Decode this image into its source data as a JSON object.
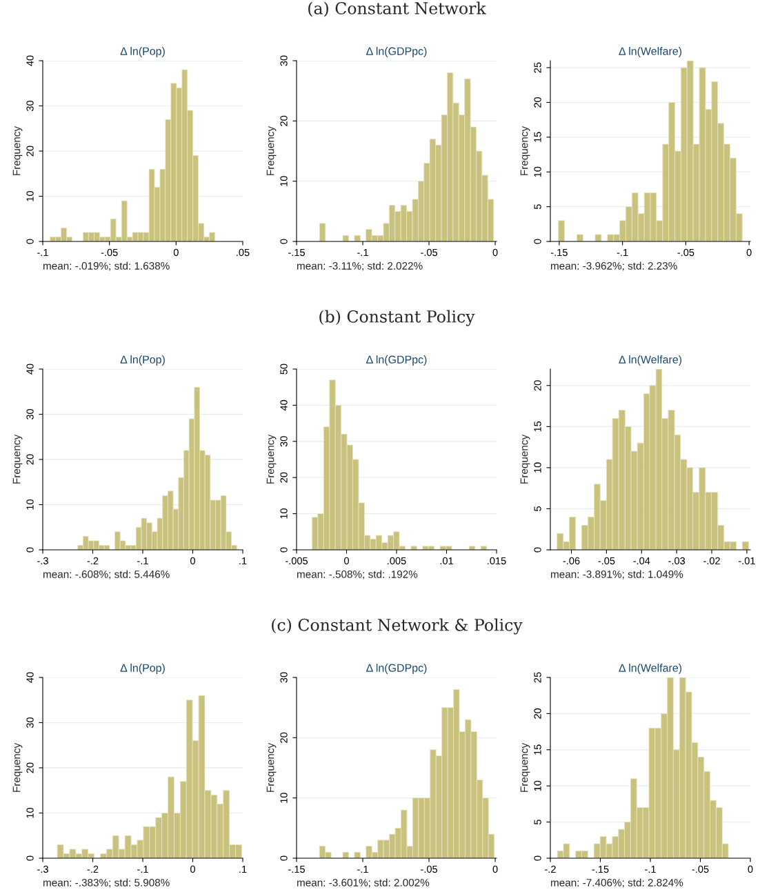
{
  "chart_data": [
    {
      "type": "histogram",
      "title": "Δ ln(Pop)",
      "ylabel": "Frequency",
      "xlabel": "mean: -.019%; std: 1.638%",
      "color": "#c9c27e",
      "grid": "y",
      "bins": [
        -0.0945,
        -0.0904,
        -0.0863,
        -0.0821,
        -0.078,
        -0.0739,
        -0.0698,
        -0.0657,
        -0.0615,
        -0.0574,
        -0.0533,
        -0.0492,
        -0.0451,
        -0.0409,
        -0.0368,
        -0.0327,
        -0.0286,
        -0.0245,
        -0.0203,
        -0.0162,
        -0.0121,
        -0.008,
        -0.0039,
        0.0003,
        0.0044,
        0.0085,
        0.0126,
        0.0167,
        0.0209,
        0.025,
        0.0291
      ],
      "values": [
        1,
        1,
        3,
        1,
        0,
        0,
        2,
        2,
        2,
        1,
        1,
        5,
        1,
        9,
        1,
        2,
        2,
        2,
        16,
        12,
        16,
        27,
        35,
        34,
        38,
        29,
        19,
        4,
        1,
        2
      ],
      "xlim": [
        -0.1,
        0.05
      ],
      "xticks": [
        {
          "value": -0.1,
          "label": "-.1"
        },
        {
          "value": -0.05,
          "label": "-.05"
        },
        0,
        {
          "value": 0.05,
          "label": ".05"
        }
      ],
      "ylim": [
        0,
        40
      ],
      "yticks": [
        0,
        10,
        20,
        30,
        40
      ]
    },
    {
      "type": "histogram",
      "subtitle": "(a) Constant Network",
      "title": "Δ ln(GDPpc)",
      "ylabel": "Frequency",
      "xlabel": "mean: -3.11%; std: 2.022%",
      "color": "#c9c27e",
      "grid": "y",
      "bins": [
        -0.1326,
        -0.1282,
        -0.1238,
        -0.1195,
        -0.1151,
        -0.1107,
        -0.1063,
        -0.1019,
        -0.0976,
        -0.0932,
        -0.0888,
        -0.0844,
        -0.08,
        -0.0757,
        -0.0713,
        -0.0669,
        -0.0625,
        -0.0581,
        -0.0538,
        -0.0494,
        -0.045,
        -0.0406,
        -0.0362,
        -0.0319,
        -0.0275,
        -0.0231,
        -0.0187,
        -0.0143,
        -0.01,
        -0.0056,
        -0.0012
      ],
      "values": [
        3,
        0,
        0,
        0,
        1,
        0,
        1,
        0,
        2,
        1,
        1,
        3,
        6,
        5,
        6,
        5,
        7,
        10,
        13,
        17,
        16,
        21,
        28,
        23,
        21,
        27,
        19,
        15,
        11,
        7
      ],
      "xlim": [
        -0.15,
        0.001
      ],
      "xticks": [
        {
          "value": -0.15,
          "label": "-.15"
        },
        {
          "value": -0.1,
          "label": "-.1"
        },
        {
          "value": -0.05,
          "label": "-.05"
        },
        0
      ],
      "ylim": [
        0,
        30
      ],
      "yticks": [
        0,
        10,
        20,
        30
      ]
    },
    {
      "type": "histogram",
      "title": "Δ ln(Welfare)",
      "ylabel": "Frequency",
      "xlabel": "mean: -3.962%; std: 2.23%",
      "color": "#c9c27e",
      "grid": "y",
      "bins": [
        -0.1506,
        -0.1458,
        -0.1409,
        -0.1361,
        -0.1312,
        -0.1264,
        -0.1216,
        -0.1167,
        -0.1119,
        -0.107,
        -0.1022,
        -0.0974,
        -0.0925,
        -0.0877,
        -0.0828,
        -0.078,
        -0.0732,
        -0.0683,
        -0.0635,
        -0.0586,
        -0.0538,
        -0.049,
        -0.0441,
        -0.0393,
        -0.0344,
        -0.0296,
        -0.0248,
        -0.0199,
        -0.0151,
        -0.0102,
        -0.0054
      ],
      "values": [
        3,
        0,
        0,
        1,
        0,
        0,
        1,
        0,
        1,
        1,
        3,
        5,
        7,
        4,
        7,
        7,
        3,
        14,
        20,
        13,
        25,
        26,
        14,
        25,
        19,
        23,
        17,
        14,
        12,
        4
      ],
      "xlim": [
        -0.157,
        0.001
      ],
      "xticks": [
        {
          "value": -0.15,
          "label": "-.15"
        },
        {
          "value": -0.1,
          "label": "-.1"
        },
        {
          "value": -0.05,
          "label": "-.05"
        },
        0
      ],
      "ylim": [
        0,
        26
      ],
      "yticks": [
        0,
        5,
        10,
        15,
        20,
        25
      ]
    },
    {
      "type": "histogram",
      "title": "Δ ln(Pop)",
      "ylabel": "Frequency",
      "xlabel": "mean: -.608%; std: 5.446%",
      "color": "#c9c27e",
      "grid": "y",
      "bins": [
        -0.23,
        -0.2194,
        -0.2088,
        -0.1982,
        -0.1876,
        -0.177,
        -0.1664,
        -0.1558,
        -0.1452,
        -0.1346,
        -0.124,
        -0.1134,
        -0.1028,
        -0.0922,
        -0.0816,
        -0.071,
        -0.0604,
        -0.0498,
        -0.0392,
        -0.0286,
        -0.018,
        -0.0074,
        0.0032,
        0.0138,
        0.0244,
        0.035,
        0.0456,
        0.0562,
        0.0668,
        0.0774,
        0.088
      ],
      "values": [
        1,
        3,
        2,
        2,
        1,
        1,
        0,
        4,
        2,
        1,
        1,
        5,
        7,
        6,
        4,
        7,
        12,
        13,
        9,
        16,
        22,
        29,
        36,
        22,
        21,
        11,
        11,
        12,
        4,
        1
      ],
      "xlim": [
        -0.3,
        0.1
      ],
      "xticks": [
        {
          "value": -0.3,
          "label": "-.3"
        },
        {
          "value": -0.2,
          "label": "-.2"
        },
        {
          "value": -0.1,
          "label": "-.1"
        },
        0,
        {
          "value": 0.1,
          "label": ".1"
        }
      ],
      "ylim": [
        0,
        40
      ],
      "yticks": [
        0,
        10,
        20,
        30,
        40
      ]
    },
    {
      "type": "histogram",
      "subtitle": "(b) Constant Policy",
      "title": "Δ ln(GDPpc)",
      "ylabel": "Frequency",
      "xlabel": "mean: -.508%; std: .192%",
      "color": "#c9c27e",
      "grid": "y",
      "bins": [
        -0.00345,
        -0.00287,
        -0.00229,
        -0.0017,
        -0.00112,
        -0.00054,
        4e-05,
        0.00062,
        0.00121,
        0.00179,
        0.00237,
        0.00295,
        0.00353,
        0.00412,
        0.0047,
        0.00528,
        0.00586,
        0.00644,
        0.00703,
        0.00761,
        0.00819,
        0.00877,
        0.00935,
        0.00994,
        0.01052,
        0.0111,
        0.01168,
        0.01226,
        0.01285,
        0.01343,
        0.01401
      ],
      "values": [
        9,
        10,
        34,
        47,
        40,
        32,
        29,
        25,
        13,
        4,
        3,
        4,
        2,
        4,
        5,
        1,
        0,
        1,
        0,
        1,
        1,
        0,
        1,
        1,
        0,
        0,
        0,
        1,
        0,
        1
      ],
      "xlim": [
        -0.005,
        0.015
      ],
      "xticks": [
        {
          "value": -0.005,
          "label": "-.005"
        },
        0,
        {
          "value": 0.005,
          "label": ".005"
        },
        {
          "value": 0.01,
          "label": ".01"
        },
        {
          "value": 0.015,
          "label": ".015"
        }
      ],
      "ylim": [
        0,
        50
      ],
      "yticks": [
        0,
        10,
        20,
        30,
        40,
        50
      ]
    },
    {
      "type": "histogram",
      "title": "Δ ln(Welfare)",
      "ylabel": "Frequency",
      "xlabel": "mean: -3.891%; std: 1.049%",
      "color": "#c9c27e",
      "grid": "y",
      "bins": [
        -0.0641,
        -0.0623,
        -0.0606,
        -0.0588,
        -0.0571,
        -0.0553,
        -0.0535,
        -0.0518,
        -0.05,
        -0.0483,
        -0.0465,
        -0.0447,
        -0.043,
        -0.0412,
        -0.0394,
        -0.0377,
        -0.0359,
        -0.0342,
        -0.0324,
        -0.0306,
        -0.0289,
        -0.0271,
        -0.0254,
        -0.0236,
        -0.0218,
        -0.0201,
        -0.0183,
        -0.0165,
        -0.0148,
        -0.013,
        -0.0113,
        -0.0095
      ],
      "values": [
        2,
        1,
        4,
        0,
        3,
        4,
        8,
        6,
        11,
        16,
        17,
        15,
        12,
        13,
        19,
        20,
        22,
        16,
        17,
        14,
        11,
        10,
        7,
        10,
        7,
        7,
        3,
        1,
        1,
        0,
        1
      ],
      "xlim": [
        -0.066,
        -0.009
      ],
      "xticks": [
        {
          "value": -0.06,
          "label": "-.06"
        },
        {
          "value": -0.05,
          "label": "-.05"
        },
        {
          "value": -0.04,
          "label": "-.04"
        },
        {
          "value": -0.03,
          "label": "-.03"
        },
        {
          "value": -0.02,
          "label": "-.02"
        },
        {
          "value": -0.01,
          "label": "-.01"
        }
      ],
      "ylim": [
        0,
        22
      ],
      "yticks": [
        0,
        5,
        10,
        15,
        20
      ]
    },
    {
      "type": "histogram",
      "title": "Δ ln(Pop)",
      "ylabel": "Frequency",
      "xlabel": "mean: -.383%; std: 5.908%",
      "color": "#c9c27e",
      "grid": "y",
      "bins": [
        -0.2709,
        -0.2586,
        -0.2463,
        -0.234,
        -0.2217,
        -0.2094,
        -0.1971,
        -0.1849,
        -0.1726,
        -0.1603,
        -0.148,
        -0.1357,
        -0.1234,
        -0.1111,
        -0.0988,
        -0.0865,
        -0.0742,
        -0.0619,
        -0.0496,
        -0.0373,
        -0.025,
        -0.0127,
        -0.0005,
        0.0118,
        0.0241,
        0.0364,
        0.0487,
        0.061,
        0.0733,
        0.0856,
        0.0979
      ],
      "values": [
        3,
        1,
        2,
        1,
        2,
        1,
        0,
        1,
        2,
        5,
        2,
        5,
        3,
        4,
        7,
        7,
        9,
        10,
        18,
        10,
        17,
        35,
        26,
        36,
        15,
        14,
        12,
        15,
        3,
        3
      ],
      "xlim": [
        -0.3,
        0.1
      ],
      "xticks": [
        {
          "value": -0.3,
          "label": "-.3"
        },
        {
          "value": -0.2,
          "label": "-.2"
        },
        {
          "value": -0.1,
          "label": "-.1"
        },
        0,
        {
          "value": 0.1,
          "label": ".1"
        }
      ],
      "ylim": [
        0,
        40
      ],
      "yticks": [
        0,
        10,
        20,
        30,
        40
      ]
    },
    {
      "type": "histogram",
      "subtitle": "(c) Constant Network & Policy",
      "title": "Δ ln(GDPpc)",
      "ylabel": "Frequency",
      "xlabel": "mean: -3.601%; std: 2.002%",
      "color": "#c9c27e",
      "grid": "y",
      "bins": [
        -0.1327,
        -0.1283,
        -0.1239,
        -0.1195,
        -0.1151,
        -0.1107,
        -0.1063,
        -0.1019,
        -0.0975,
        -0.0931,
        -0.0887,
        -0.0843,
        -0.0799,
        -0.0755,
        -0.0711,
        -0.0667,
        -0.0623,
        -0.0579,
        -0.0535,
        -0.0491,
        -0.0447,
        -0.0403,
        -0.0359,
        -0.0315,
        -0.0271,
        -0.0227,
        -0.0183,
        -0.0139,
        -0.0095,
        -0.0051,
        -0.0007
      ],
      "values": [
        2,
        1,
        0,
        0,
        1,
        0,
        1,
        0,
        2,
        1,
        3,
        3,
        4,
        5,
        8,
        2,
        10,
        10,
        10,
        18,
        17,
        25,
        25,
        28,
        21,
        23,
        21,
        13,
        10,
        4
      ],
      "xlim": [
        -0.15,
        0.001
      ],
      "xticks": [
        {
          "value": -0.15,
          "label": "-.15"
        },
        {
          "value": -0.1,
          "label": "-.1"
        },
        {
          "value": -0.05,
          "label": "-.05"
        },
        0
      ],
      "ylim": [
        0,
        30
      ],
      "yticks": [
        0,
        10,
        20,
        30
      ]
    },
    {
      "type": "histogram",
      "title": "Δ ln(Welfare)",
      "ylabel": "Frequency",
      "xlabel": "mean: -7.406%; std: 2.824%",
      "color": "#c9c27e",
      "grid": "y",
      "bins": [
        -0.193,
        -0.1869,
        -0.1808,
        -0.1747,
        -0.1686,
        -0.1625,
        -0.1564,
        -0.1502,
        -0.1441,
        -0.138,
        -0.1319,
        -0.1258,
        -0.1197,
        -0.1136,
        -0.1075,
        -0.1014,
        -0.0953,
        -0.0892,
        -0.0831,
        -0.077,
        -0.0708,
        -0.0647,
        -0.0586,
        -0.0525,
        -0.0464,
        -0.0403,
        -0.0342,
        -0.0281,
        -0.022
      ],
      "values": [
        1,
        2,
        0,
        1,
        1,
        0,
        2,
        3,
        2,
        3,
        4,
        5,
        11,
        7,
        7,
        18,
        18,
        20,
        25,
        15,
        25,
        23,
        16,
        14,
        12,
        8,
        7,
        2
      ],
      "xlim": [
        -0.2,
        0
      ],
      "xticks": [
        {
          "value": -0.2,
          "label": "-.2"
        },
        {
          "value": -0.15,
          "label": "-.15"
        },
        {
          "value": -0.1,
          "label": "-.1"
        },
        {
          "value": -0.05,
          "label": "-.05"
        },
        0
      ],
      "ylim": [
        0,
        25
      ],
      "yticks": [
        0,
        5,
        10,
        15,
        20,
        25
      ]
    }
  ]
}
